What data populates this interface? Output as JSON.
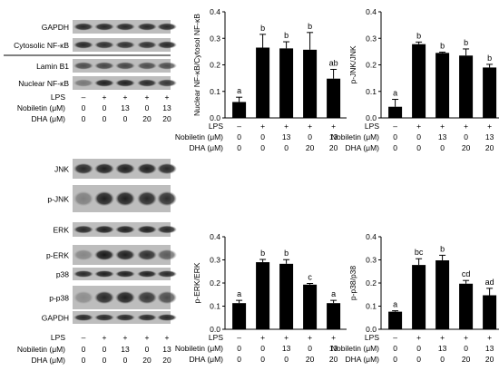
{
  "blots": {
    "top": {
      "rows": [
        {
          "label": "GAPDH",
          "intensities": [
            0.85,
            0.85,
            0.85,
            0.85,
            0.85
          ]
        },
        {
          "label": "Cytosolic NF-κB",
          "intensities": [
            0.85,
            0.8,
            0.8,
            0.8,
            0.85
          ]
        },
        {
          "label": "Lamin B1",
          "intensities": [
            0.6,
            0.65,
            0.65,
            0.6,
            0.6
          ]
        },
        {
          "label": "Nuclear NF-κB",
          "intensities": [
            0.3,
            0.9,
            0.9,
            0.85,
            0.75
          ]
        }
      ]
    },
    "bottom": {
      "rows": [
        {
          "label": "JNK",
          "intensities": [
            0.85,
            0.9,
            0.9,
            0.9,
            0.85
          ]
        },
        {
          "label": "p-JNK",
          "intensities": [
            0.25,
            0.9,
            0.9,
            0.85,
            0.8
          ]
        },
        {
          "label": "ERK",
          "intensities": [
            0.85,
            0.9,
            0.9,
            0.9,
            0.85
          ]
        },
        {
          "label": "p-ERK",
          "intensities": [
            0.2,
            0.95,
            0.9,
            0.8,
            0.5
          ]
        },
        {
          "label": "p38",
          "intensities": [
            0.85,
            0.9,
            0.9,
            0.9,
            0.85
          ]
        },
        {
          "label": "p-p38",
          "intensities": [
            0.15,
            0.85,
            0.9,
            0.75,
            0.6
          ]
        },
        {
          "label": "GAPDH",
          "intensities": [
            0.85,
            0.85,
            0.85,
            0.85,
            0.85
          ]
        }
      ]
    }
  },
  "treatments": {
    "row_labels": [
      "LPS",
      "Nobiletin (μM)",
      "DHA (μM)"
    ],
    "lps": [
      "–",
      "+",
      "+",
      "+",
      "+"
    ],
    "nobiletin": [
      "0",
      "0",
      "13",
      "0",
      "13"
    ],
    "dha": [
      "0",
      "0",
      "0",
      "20",
      "20"
    ]
  },
  "chart_data": [
    {
      "type": "bar",
      "ylabel": "Nuclear NF-κB/Cytosol NF-κB",
      "ylim": [
        0,
        0.4
      ],
      "yticks": [
        "0.0",
        "0.1",
        "0.2",
        "0.3",
        "0.4"
      ],
      "values": [
        0.06,
        0.265,
        0.262,
        0.257,
        0.148
      ],
      "errors": [
        0.018,
        0.05,
        0.025,
        0.065,
        0.035
      ],
      "letters": [
        "a",
        "b",
        "b",
        "b",
        "ab"
      ]
    },
    {
      "type": "bar",
      "ylabel": "p-JNK/JNK",
      "ylim": [
        0,
        0.4
      ],
      "yticks": [
        "0.0",
        "0.1",
        "0.2",
        "0.3",
        "0.4"
      ],
      "values": [
        0.042,
        0.278,
        0.245,
        0.235,
        0.19
      ],
      "errors": [
        0.028,
        0.008,
        0.003,
        0.025,
        0.012
      ],
      "letters": [
        "a",
        "b",
        "b",
        "b",
        "b"
      ]
    },
    {
      "type": "bar",
      "ylabel": "p-ERK/ERK",
      "ylim": [
        0,
        0.4
      ],
      "yticks": [
        "0.0",
        "0.1",
        "0.2",
        "0.3",
        "0.4"
      ],
      "values": [
        0.113,
        0.29,
        0.283,
        0.193,
        0.113
      ],
      "errors": [
        0.012,
        0.012,
        0.018,
        0.005,
        0.012
      ],
      "letters": [
        "a",
        "b",
        "b",
        "c",
        "a"
      ]
    },
    {
      "type": "bar",
      "ylabel": "p-p38/p38",
      "ylim": [
        0,
        0.4
      ],
      "yticks": [
        "0.0",
        "0.1",
        "0.2",
        "0.3",
        "0.4"
      ],
      "values": [
        0.076,
        0.278,
        0.298,
        0.197,
        0.147
      ],
      "errors": [
        0.004,
        0.027,
        0.022,
        0.014,
        0.03
      ],
      "letters": [
        "a",
        "bc",
        "b",
        "cd",
        "ad"
      ]
    }
  ]
}
